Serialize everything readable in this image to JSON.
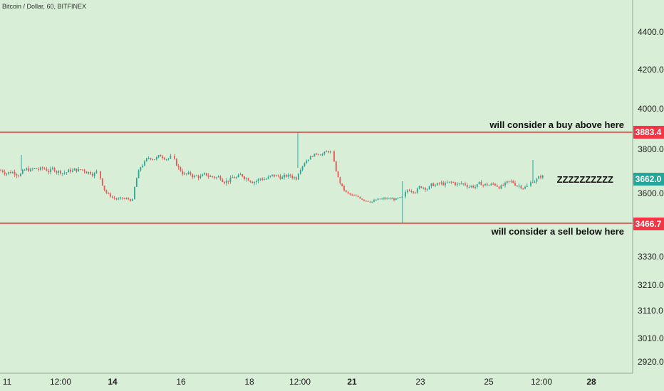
{
  "header": {
    "title": "Bitcoin / Dollar, 60, BITFINEX"
  },
  "colors": {
    "background": "#d8eed6",
    "up_candle": "#26a69a",
    "down_candle": "#ef5350",
    "line": "#e53935",
    "tag_red": "#f23645",
    "tag_green": "#26a69a",
    "axis_line": "#9aa59a"
  },
  "chart_data": {
    "type": "candlestick",
    "title": "Bitcoin / Dollar, 60, BITFINEX",
    "price_axis": {
      "ticks": [
        "4400.0",
        "4200.0",
        "4000.0",
        "3800.0",
        "3600.0",
        "3330.0",
        "3210.0",
        "3110.0",
        "3010.0",
        "2920.0"
      ]
    },
    "time_axis": {
      "ticks": [
        {
          "label": "11",
          "bold": false
        },
        {
          "label": "12:00",
          "bold": false
        },
        {
          "label": "14",
          "bold": true
        },
        {
          "label": "16",
          "bold": false
        },
        {
          "label": "18",
          "bold": false
        },
        {
          "label": "12:00",
          "bold": false
        },
        {
          "label": "21",
          "bold": true
        },
        {
          "label": "23",
          "bold": false
        },
        {
          "label": "25",
          "bold": false
        },
        {
          "label": "12:00",
          "bold": false
        },
        {
          "label": "28",
          "bold": true
        }
      ]
    },
    "horizontal_lines": [
      {
        "price": 3883.4,
        "label": "3883.4",
        "annotation": "will consider a buy above here"
      },
      {
        "price": 3466.7,
        "label": "3466.7",
        "annotation": "will consider a sell below here"
      }
    ],
    "current_price": {
      "label": "3662.0",
      "annotation": "ZZZZZZZZZZ"
    },
    "price_segments": [
      {
        "x0": 0,
        "x1": 137,
        "level": 3700,
        "noise": 28
      },
      {
        "x0": 140,
        "x1": 186,
        "level": 3568,
        "noise": 15
      },
      {
        "x0": 188,
        "x1": 242,
        "level": 3770,
        "noise": 22
      },
      {
        "x0": 244,
        "x1": 416,
        "level": 3668,
        "noise": 26
      },
      {
        "x0": 418,
        "x1": 466,
        "level": 3790,
        "noise": 16
      },
      {
        "x0": 468,
        "x1": 566,
        "level": 3572,
        "noise": 14
      },
      {
        "x0": 568,
        "x1": 742,
        "level": 3635,
        "noise": 22
      },
      {
        "x0": 744,
        "x1": 764,
        "level": 3678,
        "noise": 20
      }
    ]
  }
}
